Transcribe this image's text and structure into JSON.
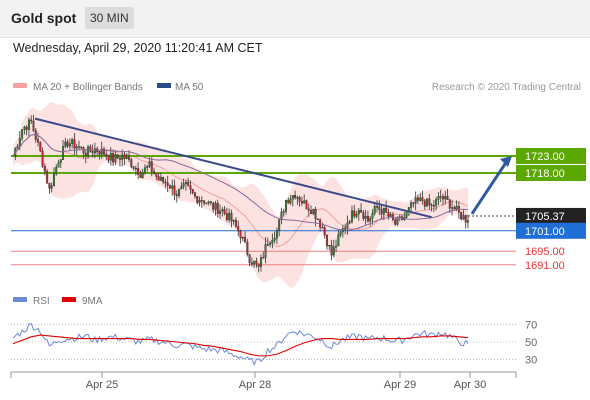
{
  "header": {
    "title": "Gold spot",
    "timeframe": "30 MIN"
  },
  "datetime": "Wednesday, April 29, 2020 11:20:41 AM CET",
  "legend": {
    "bollinger": "MA 20 + Bollinger Bands",
    "ma50": "MA 50",
    "credit": "Research © 2020 Trading Central"
  },
  "rsi_legend": {
    "rsi": "RSI",
    "ma9": "9MA"
  },
  "colors": {
    "bollinger": "#f4a3a3",
    "ma50": "#2b4a8a",
    "resistance": "#5aa800",
    "pivot": "#1f6fd6",
    "support": "#e53935",
    "current": "#222222",
    "rsi": "#6b8ad6",
    "rsi_ma": "#e00000",
    "arrow": "#2f5aa0"
  },
  "chart_data": [
    {
      "type": "candlestick",
      "instrument": "Gold spot",
      "timeframe": "30 MIN",
      "x_tick_labels": [
        "Apr 25",
        "Apr 28",
        "Apr 29",
        "Apr 30"
      ],
      "ylim": [
        1688,
        1738
      ],
      "series": [
        {
          "name": "MA 20 + Bollinger Bands",
          "type": "band"
        },
        {
          "name": "MA 50",
          "type": "line"
        }
      ],
      "price_path": [
        1723,
        1731,
        1733,
        1724,
        1713,
        1722,
        1727,
        1726,
        1724,
        1725,
        1724,
        1722,
        1723,
        1721,
        1718,
        1720,
        1716,
        1715,
        1712,
        1714,
        1711,
        1710,
        1708,
        1707,
        1704,
        1700,
        1693,
        1690,
        1698,
        1701,
        1710,
        1712,
        1709,
        1707,
        1702,
        1694,
        1700,
        1705,
        1708,
        1704,
        1708,
        1706,
        1703,
        1705,
        1709,
        1710,
        1708,
        1711,
        1709,
        1706,
        1704
      ],
      "price_labels": [
        {
          "label": "1723.00",
          "kind": "resistance"
        },
        {
          "label": "1718.00",
          "kind": "resistance"
        },
        {
          "label": "1705.37",
          "kind": "current"
        },
        {
          "label": "1701.00",
          "kind": "pivot"
        },
        {
          "label": "1695.00",
          "kind": "support"
        },
        {
          "label": "1691.00",
          "kind": "support"
        }
      ],
      "trendline": [
        [
          0,
          1734
        ],
        [
          46,
          1705
        ]
      ],
      "arrow": {
        "from": [
          50,
          1706
        ],
        "to": [
          1723
        ]
      }
    },
    {
      "type": "line",
      "indicator": "RSI",
      "series": [
        {
          "name": "RSI",
          "values": [
            55,
            62,
            70,
            63,
            45,
            52,
            54,
            55,
            57,
            52,
            55,
            56,
            54,
            52,
            50,
            53,
            51,
            49,
            46,
            47,
            44,
            42,
            41,
            40,
            36,
            33,
            28,
            27,
            40,
            46,
            58,
            63,
            59,
            57,
            52,
            44,
            52,
            55,
            57,
            53,
            55,
            54,
            51,
            53,
            58,
            60,
            58,
            61,
            57,
            50,
            48
          ]
        },
        {
          "name": "9MA",
          "values": [
            48,
            52,
            56,
            58,
            57,
            56,
            55,
            54,
            54,
            54,
            54,
            54,
            54,
            54,
            53,
            53,
            52,
            51,
            50,
            49,
            48,
            46,
            45,
            43,
            41,
            39,
            36,
            34,
            34,
            36,
            40,
            45,
            49,
            52,
            54,
            54,
            53,
            53,
            53,
            53,
            54,
            54,
            54,
            54,
            55,
            56,
            56,
            57,
            57,
            56,
            55
          ]
        }
      ],
      "ylim": [
        20,
        80
      ],
      "yticks": [
        30,
        50,
        70
      ]
    }
  ]
}
